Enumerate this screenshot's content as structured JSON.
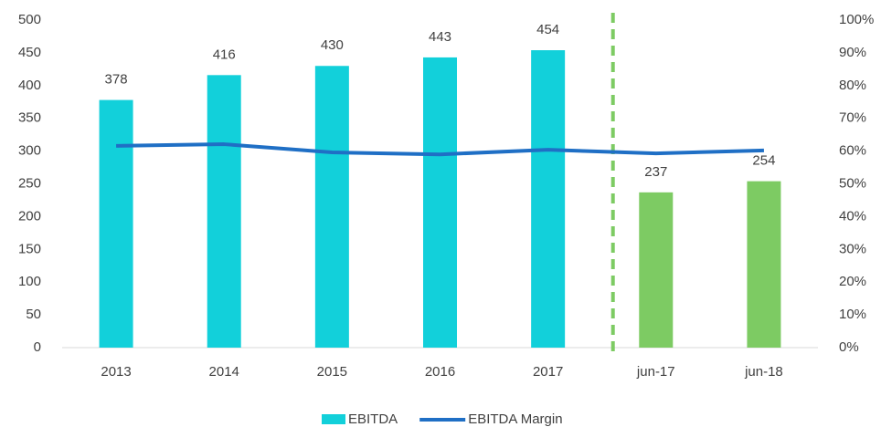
{
  "chart_data": {
    "type": "bar_line",
    "categories": [
      "2013",
      "2014",
      "2015",
      "2016",
      "2017",
      "jun-17",
      "jun-18"
    ],
    "series": [
      {
        "name": "EBITDA",
        "type": "bar",
        "color": "#12D0DA",
        "colors": [
          "#12D0DA",
          "#12D0DA",
          "#12D0DA",
          "#12D0DA",
          "#12D0DA",
          "#7DCB63",
          "#7DCB63"
        ],
        "values": [
          378,
          416,
          430,
          443,
          454,
          237,
          254
        ]
      },
      {
        "name": "EBITDA Margin",
        "type": "line",
        "axis": "y2",
        "color": "#1F6FC5",
        "values": [
          61.6,
          62.1,
          59.6,
          59.0,
          60.4,
          59.3,
          60.2
        ]
      }
    ],
    "ylim": [
      0,
      500
    ],
    "yticks": [
      0,
      50,
      100,
      150,
      200,
      250,
      300,
      350,
      400,
      450,
      500
    ],
    "y2lim": [
      0,
      100
    ],
    "y2ticks": [
      {
        "value": 0,
        "label": "0%"
      },
      {
        "value": 10,
        "label": "10%"
      },
      {
        "value": 20,
        "label": "20%"
      },
      {
        "value": 30,
        "label": "30%"
      },
      {
        "value": 40,
        "label": "40%"
      },
      {
        "value": 50,
        "label": "50%"
      },
      {
        "value": 60,
        "label": "60%"
      },
      {
        "value": 70,
        "label": "70%"
      },
      {
        "value": 80,
        "label": "80%"
      },
      {
        "value": 90,
        "label": "90%"
      },
      {
        "value": 100,
        "label": "100%"
      }
    ],
    "grid": false,
    "legend": "bottom"
  }
}
